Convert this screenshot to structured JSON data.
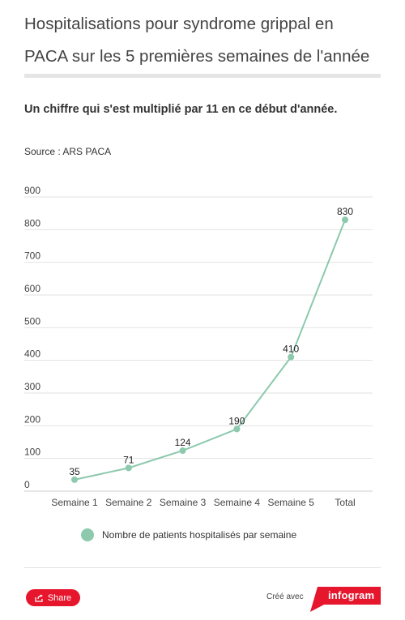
{
  "header": {
    "title": "Hospitalisations pour syndrome grippal en PACA sur les 5 premières semaines de l'année",
    "subtitle": "Un chiffre qui s'est multiplié par 11 en ce début d'année.",
    "source": "Source : ARS PACA"
  },
  "chart_data": {
    "type": "line",
    "categories": [
      "Semaine 1",
      "Semaine 2",
      "Semaine 3",
      "Semaine 4",
      "Semaine 5",
      "Total"
    ],
    "series": [
      {
        "name": "Nombre de patients hospitalisés par semaine",
        "values": [
          35,
          71,
          124,
          190,
          410,
          830
        ],
        "color": "#8cc9ad"
      }
    ],
    "ylim": [
      0,
      900
    ],
    "yticks": [
      0,
      100,
      200,
      300,
      400,
      500,
      600,
      700,
      800,
      900
    ],
    "grid": true,
    "legend_position": "bottom",
    "data_labels": true
  },
  "footer": {
    "share_label": "Share",
    "created_with": "Créé avec",
    "brand": "infogram",
    "brand_color": "#e6162d"
  }
}
